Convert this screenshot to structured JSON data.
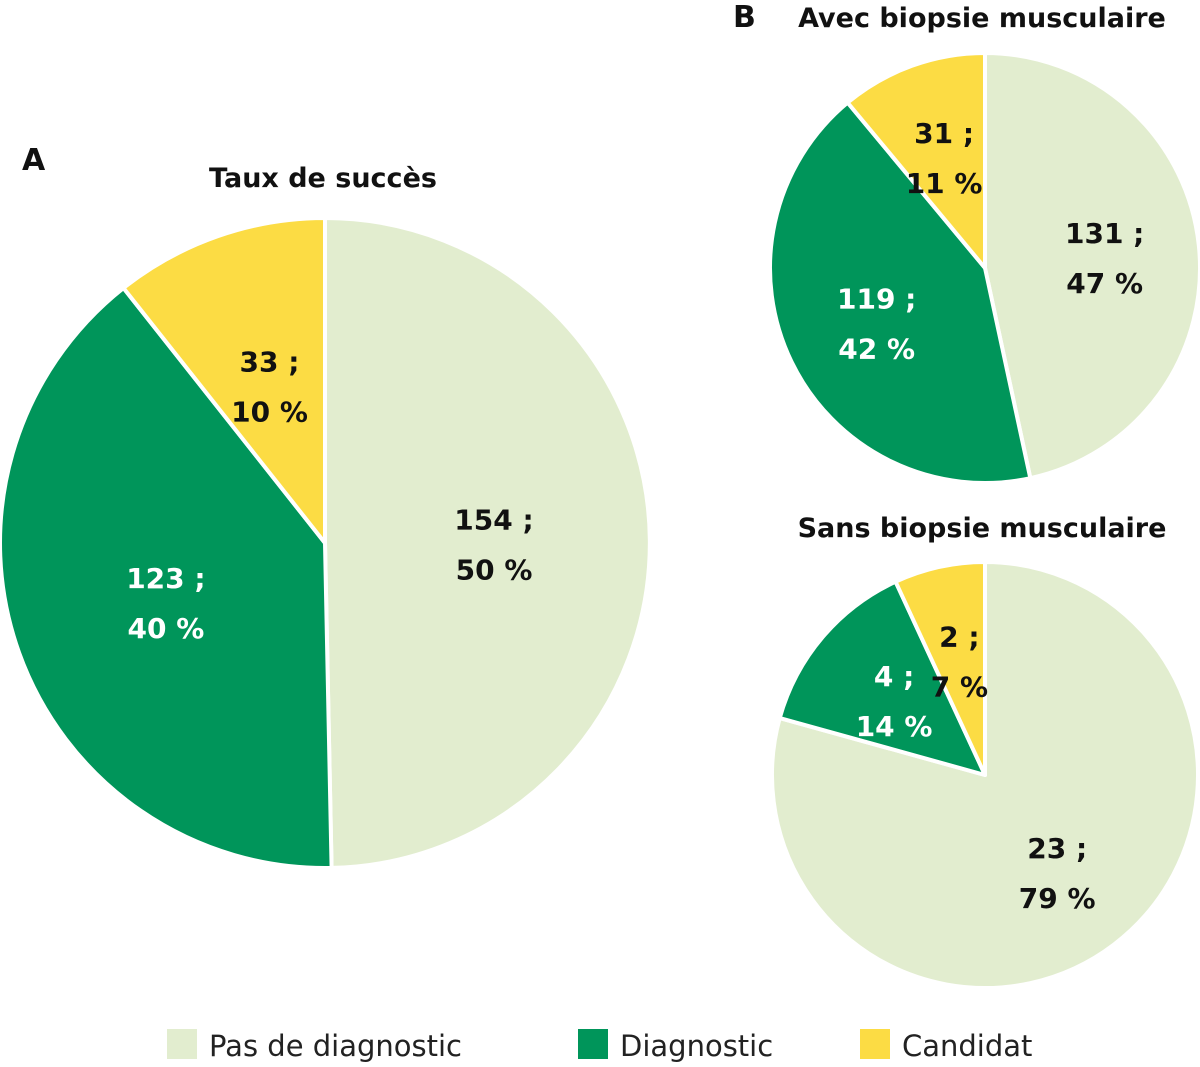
{
  "legend": [
    {
      "label": "Pas de diagnostic",
      "color": "#e2edcf"
    },
    {
      "label": "Diagnostic",
      "color": "#00955a"
    },
    {
      "label": "Candidat",
      "color": "#fcdc44"
    }
  ],
  "chart_data": [
    {
      "type": "pie",
      "panel": "A",
      "title": "Taux de succès",
      "slices": [
        {
          "category": "Pas de diagnostic",
          "count": 154,
          "percent": 50,
          "label_line1": "154 ;",
          "label_line2": "50 %"
        },
        {
          "category": "Diagnostic",
          "count": 123,
          "percent": 40,
          "label_line1": "123 ;",
          "label_line2": "40 %"
        },
        {
          "category": "Candidat",
          "count": 33,
          "percent": 10,
          "label_line1": "33 ;",
          "label_line2": "10 %"
        }
      ]
    },
    {
      "type": "pie",
      "panel": "B",
      "title": "Avec biopsie musculaire",
      "slices": [
        {
          "category": "Pas de diagnostic",
          "count": 131,
          "percent": 47,
          "label_line1": "131 ;",
          "label_line2": "47 %"
        },
        {
          "category": "Diagnostic",
          "count": 119,
          "percent": 42,
          "label_line1": "119 ;",
          "label_line2": "42 %"
        },
        {
          "category": "Candidat",
          "count": 31,
          "percent": 11,
          "label_line1": "31 ;",
          "label_line2": "11 %"
        }
      ]
    },
    {
      "type": "pie",
      "panel": "",
      "title": "Sans biopsie musculaire",
      "slices": [
        {
          "category": "Pas de diagnostic",
          "count": 23,
          "percent": 79,
          "label_line1": "23 ;",
          "label_line2": "79 %"
        },
        {
          "category": "Diagnostic",
          "count": 4,
          "percent": 14,
          "label_line1": "4 ;",
          "label_line2": "14 %"
        },
        {
          "category": "Candidat",
          "count": 2,
          "percent": 7,
          "label_line1": "2 ;",
          "label_line2": "7 %"
        }
      ]
    }
  ]
}
